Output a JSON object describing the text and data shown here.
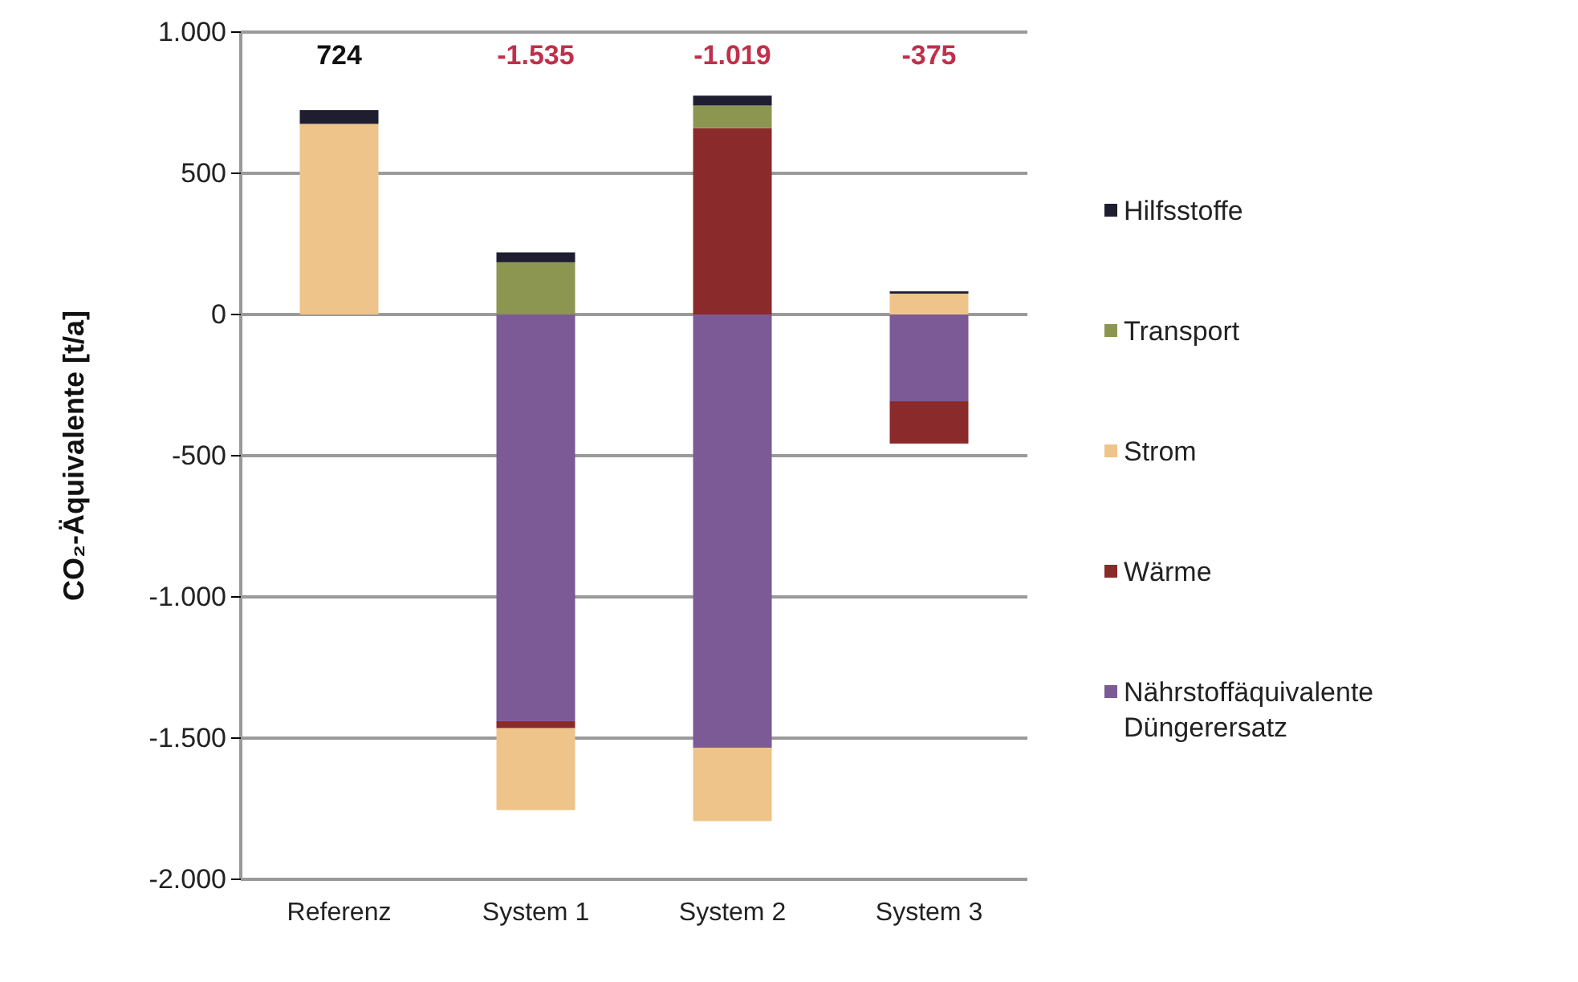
{
  "chart_data": {
    "type": "bar",
    "stacked": true,
    "ylabel": "CO₂-Äquivalente [t/a]",
    "categories": [
      "Referenz",
      "System 1",
      "System 2",
      "System 3"
    ],
    "series": [
      {
        "name": "Nährstoffäquivalente Düngerersatz",
        "color": "#7b5a96",
        "values": [
          null,
          -1440,
          -1534,
          -307
        ]
      },
      {
        "name": "Wärme",
        "color": "#8b2a2a",
        "values": [
          null,
          -25,
          660,
          -150
        ]
      },
      {
        "name": "Strom",
        "color": "#eec48a",
        "values": [
          675,
          -290,
          -260,
          74
        ]
      },
      {
        "name": "Transport",
        "color": "#8c9650",
        "values": [
          null,
          185,
          80,
          null
        ]
      },
      {
        "name": "Hilfsstoffe",
        "color": "#1e1e30",
        "values": [
          49,
          35,
          35,
          8
        ]
      }
    ],
    "annotations": [
      "724",
      "-1.535",
      "-1.019",
      "-375"
    ],
    "ylim": [
      -2000,
      1000
    ],
    "yticks": [
      {
        "value": -2000,
        "label": "-2.000"
      },
      {
        "value": -1500,
        "label": "-1.500"
      },
      {
        "value": -1000,
        "label": "-1.000"
      },
      -500,
      0,
      500,
      {
        "value": 1000,
        "label": "1.000"
      }
    ],
    "grid": "y",
    "legend": "right"
  }
}
